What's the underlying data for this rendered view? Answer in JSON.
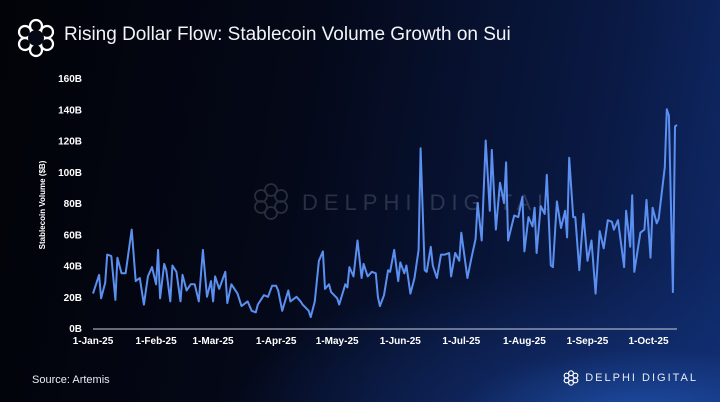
{
  "header": {
    "title": "Rising Dollar Flow: Stablecoin Volume Growth on Sui",
    "logo_icon": "delphi-flower-icon"
  },
  "footer": {
    "source": "Source: Artemis",
    "brand": "DELPHI DIGITAL"
  },
  "watermark": "DELPHI DIGITAL",
  "colors": {
    "line": "#5b8ff0",
    "axis": "#c8d0e0"
  },
  "chart_data": {
    "type": "line",
    "title": "Rising Dollar Flow: Stablecoin Volume Growth on Sui",
    "xlabel": "",
    "ylabel": "Stablecoin Volume ($B)",
    "ylim": [
      0,
      160
    ],
    "xlim": [
      "2025-01-01",
      "2025-10-15"
    ],
    "grid": false,
    "yticks": [
      0,
      20,
      40,
      60,
      80,
      100,
      120,
      140,
      160
    ],
    "ytick_labels": [
      "0B",
      "20B",
      "40B",
      "60B",
      "80B",
      "100B",
      "120B",
      "140B",
      "160B"
    ],
    "xticks": [
      "2025-01-01",
      "2025-02-01",
      "2025-03-01",
      "2025-04-01",
      "2025-05-01",
      "2025-06-01",
      "2025-07-01",
      "2025-08-01",
      "2025-09-01",
      "2025-10-01"
    ],
    "xtick_labels": [
      "1-Jan-25",
      "1-Feb-25",
      "1-Mar-25",
      "1-Apr-25",
      "1-May-25",
      "1-Jun-25",
      "1-Jul-25",
      "1-Aug-25",
      "1-Sep-25",
      "1-Oct-25"
    ],
    "series": [
      {
        "points": [
          [
            "2025-01-01",
            22
          ],
          [
            "2025-01-04",
            34
          ],
          [
            "2025-01-05",
            19
          ],
          [
            "2025-01-07",
            29
          ],
          [
            "2025-01-08",
            47
          ],
          [
            "2025-01-10",
            46
          ],
          [
            "2025-01-12",
            18
          ],
          [
            "2025-01-13",
            45
          ],
          [
            "2025-01-15",
            35
          ],
          [
            "2025-01-17",
            35
          ],
          [
            "2025-01-20",
            63
          ],
          [
            "2025-01-22",
            30
          ],
          [
            "2025-01-24",
            32
          ],
          [
            "2025-01-26",
            15
          ],
          [
            "2025-01-28",
            33
          ],
          [
            "2025-01-30",
            39
          ],
          [
            "2025-02-01",
            28
          ],
          [
            "2025-02-02",
            50
          ],
          [
            "2025-02-03",
            19
          ],
          [
            "2025-02-05",
            41
          ],
          [
            "2025-02-06",
            37
          ],
          [
            "2025-02-08",
            17
          ],
          [
            "2025-02-09",
            40
          ],
          [
            "2025-02-11",
            36
          ],
          [
            "2025-02-13",
            17
          ],
          [
            "2025-02-14",
            34
          ],
          [
            "2025-02-16",
            24
          ],
          [
            "2025-02-18",
            28
          ],
          [
            "2025-02-20",
            28
          ],
          [
            "2025-02-22",
            17
          ],
          [
            "2025-02-24",
            50
          ],
          [
            "2025-02-26",
            20
          ],
          [
            "2025-02-28",
            30
          ],
          [
            "2025-03-01",
            17
          ],
          [
            "2025-03-02",
            33
          ],
          [
            "2025-03-04",
            25
          ],
          [
            "2025-03-07",
            36
          ],
          [
            "2025-03-08",
            16
          ],
          [
            "2025-03-10",
            28
          ],
          [
            "2025-03-13",
            22
          ],
          [
            "2025-03-15",
            14
          ],
          [
            "2025-03-18",
            17
          ],
          [
            "2025-03-20",
            11
          ],
          [
            "2025-03-22",
            10
          ],
          [
            "2025-03-23",
            15
          ],
          [
            "2025-03-26",
            21
          ],
          [
            "2025-03-28",
            20
          ],
          [
            "2025-03-30",
            27
          ],
          [
            "2025-04-01",
            27
          ],
          [
            "2025-04-02",
            24
          ],
          [
            "2025-04-04",
            11
          ],
          [
            "2025-04-07",
            24
          ],
          [
            "2025-04-08",
            17
          ],
          [
            "2025-04-11",
            20
          ],
          [
            "2025-04-13",
            17
          ],
          [
            "2025-04-14",
            15
          ],
          [
            "2025-04-17",
            11
          ],
          [
            "2025-04-18",
            7
          ],
          [
            "2025-04-20",
            17
          ],
          [
            "2025-04-22",
            43
          ],
          [
            "2025-04-24",
            49
          ],
          [
            "2025-04-25",
            25
          ],
          [
            "2025-04-27",
            28
          ],
          [
            "2025-04-28",
            23
          ],
          [
            "2025-05-01",
            19
          ],
          [
            "2025-05-02",
            15
          ],
          [
            "2025-05-05",
            28
          ],
          [
            "2025-05-06",
            26
          ],
          [
            "2025-05-07",
            39
          ],
          [
            "2025-05-09",
            33
          ],
          [
            "2025-05-11",
            56
          ],
          [
            "2025-05-13",
            32
          ],
          [
            "2025-05-14",
            41
          ],
          [
            "2025-05-16",
            33
          ],
          [
            "2025-05-18",
            36
          ],
          [
            "2025-05-20",
            35
          ],
          [
            "2025-05-21",
            20
          ],
          [
            "2025-05-22",
            14
          ],
          [
            "2025-05-24",
            21
          ],
          [
            "2025-05-26",
            37
          ],
          [
            "2025-05-27",
            36
          ],
          [
            "2025-05-29",
            50
          ],
          [
            "2025-05-31",
            30
          ],
          [
            "2025-06-01",
            42
          ],
          [
            "2025-06-03",
            35
          ],
          [
            "2025-06-04",
            40
          ],
          [
            "2025-06-06",
            22
          ],
          [
            "2025-06-08",
            32
          ],
          [
            "2025-06-10",
            50
          ],
          [
            "2025-06-11",
            115
          ],
          [
            "2025-06-13",
            37
          ],
          [
            "2025-06-14",
            36
          ],
          [
            "2025-06-16",
            52
          ],
          [
            "2025-06-17",
            40
          ],
          [
            "2025-06-19",
            32
          ],
          [
            "2025-06-21",
            47
          ],
          [
            "2025-06-23",
            47
          ],
          [
            "2025-06-25",
            48
          ],
          [
            "2025-06-26",
            33
          ],
          [
            "2025-06-28",
            48
          ],
          [
            "2025-06-30",
            43
          ],
          [
            "2025-07-01",
            61
          ],
          [
            "2025-07-04",
            32
          ],
          [
            "2025-07-06",
            45
          ],
          [
            "2025-07-08",
            57
          ],
          [
            "2025-07-09",
            80
          ],
          [
            "2025-07-11",
            56
          ],
          [
            "2025-07-13",
            120
          ],
          [
            "2025-07-15",
            75
          ],
          [
            "2025-07-16",
            114
          ],
          [
            "2025-07-18",
            63
          ],
          [
            "2025-07-20",
            93
          ],
          [
            "2025-07-22",
            80
          ],
          [
            "2025-07-23",
            106
          ],
          [
            "2025-07-24",
            56
          ],
          [
            "2025-07-27",
            72
          ],
          [
            "2025-07-29",
            71
          ],
          [
            "2025-07-31",
            84
          ],
          [
            "2025-08-01",
            49
          ],
          [
            "2025-08-03",
            71
          ],
          [
            "2025-08-05",
            65
          ],
          [
            "2025-08-06",
            77
          ],
          [
            "2025-08-07",
            48
          ],
          [
            "2025-08-09",
            78
          ],
          [
            "2025-08-11",
            73
          ],
          [
            "2025-08-12",
            98
          ],
          [
            "2025-08-14",
            40
          ],
          [
            "2025-08-15",
            39
          ],
          [
            "2025-08-17",
            81
          ],
          [
            "2025-08-19",
            64
          ],
          [
            "2025-08-21",
            75
          ],
          [
            "2025-08-22",
            58
          ],
          [
            "2025-08-23",
            109
          ],
          [
            "2025-08-25",
            71
          ],
          [
            "2025-08-26",
            71
          ],
          [
            "2025-08-28",
            37
          ],
          [
            "2025-08-30",
            73
          ],
          [
            "2025-09-01",
            43
          ],
          [
            "2025-09-03",
            56
          ],
          [
            "2025-09-05",
            22
          ],
          [
            "2025-09-07",
            62
          ],
          [
            "2025-09-09",
            51
          ],
          [
            "2025-09-11",
            69
          ],
          [
            "2025-09-13",
            68
          ],
          [
            "2025-09-14",
            63
          ],
          [
            "2025-09-16",
            69
          ],
          [
            "2025-09-19",
            39
          ],
          [
            "2025-09-20",
            75
          ],
          [
            "2025-09-22",
            52
          ],
          [
            "2025-09-23",
            85
          ],
          [
            "2025-09-24",
            36
          ],
          [
            "2025-09-27",
            61
          ],
          [
            "2025-09-29",
            63
          ],
          [
            "2025-09-30",
            82
          ],
          [
            "2025-10-02",
            45
          ],
          [
            "2025-10-03",
            77
          ],
          [
            "2025-10-05",
            67
          ],
          [
            "2025-10-06",
            70
          ],
          [
            "2025-10-09",
            103
          ],
          [
            "2025-10-10",
            140
          ],
          [
            "2025-10-11",
            136
          ],
          [
            "2025-10-13",
            23
          ],
          [
            "2025-10-14",
            129
          ],
          [
            "2025-10-15",
            130
          ]
        ]
      }
    ]
  }
}
